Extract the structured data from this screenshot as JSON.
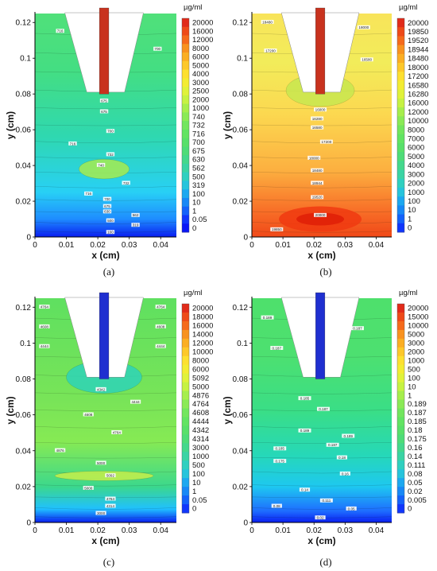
{
  "chart_data": [
    {
      "type": "heatmap",
      "panel_label": "(a)",
      "xlabel": "x (cm)",
      "ylabel": "y (cm)",
      "xlim": [
        0,
        0.045
      ],
      "ylim": [
        0,
        0.125
      ],
      "x_ticks": [
        "0",
        "0.01",
        "0.02",
        "0.03",
        "0.04"
      ],
      "y_ticks": [
        "0",
        "0.02",
        "0.04",
        "0.06",
        "0.08",
        "0.1",
        "0.12"
      ],
      "colorbar_unit": "µg/ml",
      "colorbar_levels": [
        "20000",
        "16000",
        "12000",
        "8000",
        "6000",
        "5000",
        "4000",
        "3000",
        "2500",
        "2000",
        "1000",
        "740",
        "732",
        "716",
        "700",
        "675",
        "630",
        "562",
        "500",
        "319",
        "100",
        "10",
        "1",
        "0.05",
        "0"
      ],
      "needle_color": "#c8321e",
      "contour_labels": [
        {
          "text": "716",
          "x": 0.008,
          "y": 0.115
        },
        {
          "text": "700",
          "x": 0.039,
          "y": 0.105
        },
        {
          "text": "675",
          "x": 0.022,
          "y": 0.076
        },
        {
          "text": "675",
          "x": 0.022,
          "y": 0.07
        },
        {
          "text": "700",
          "x": 0.024,
          "y": 0.059
        },
        {
          "text": "716",
          "x": 0.012,
          "y": 0.052
        },
        {
          "text": "732",
          "x": 0.024,
          "y": 0.046
        },
        {
          "text": "740",
          "x": 0.021,
          "y": 0.04
        },
        {
          "text": "732",
          "x": 0.029,
          "y": 0.03
        },
        {
          "text": "716",
          "x": 0.017,
          "y": 0.024
        },
        {
          "text": "700",
          "x": 0.023,
          "y": 0.021
        },
        {
          "text": "675",
          "x": 0.023,
          "y": 0.017
        },
        {
          "text": "630",
          "x": 0.023,
          "y": 0.014
        },
        {
          "text": "562",
          "x": 0.032,
          "y": 0.012
        },
        {
          "text": "500",
          "x": 0.024,
          "y": 0.009
        },
        {
          "text": "319",
          "x": 0.032,
          "y": 0.0065
        },
        {
          "text": "100",
          "x": 0.024,
          "y": 0.0025
        }
      ]
    },
    {
      "type": "heatmap",
      "panel_label": "(b)",
      "xlabel": "x (cm)",
      "ylabel": "y (cm)",
      "xlim": [
        0,
        0.045
      ],
      "ylim": [
        0,
        0.125
      ],
      "x_ticks": [
        "0",
        "0.01",
        "0.02",
        "0.03",
        "0.04"
      ],
      "y_ticks": [
        "0",
        "0.02",
        "0.04",
        "0.06",
        "0.08",
        "0.1",
        "0.12"
      ],
      "colorbar_unit": "µg/ml",
      "colorbar_levels": [
        "20000",
        "19850",
        "19520",
        "18944",
        "18480",
        "18000",
        "17200",
        "16580",
        "16280",
        "16000",
        "12000",
        "10000",
        "8000",
        "7000",
        "6000",
        "5000",
        "4000",
        "3000",
        "2000",
        "1000",
        "100",
        "10",
        "1",
        "0"
      ],
      "needle_color": "#c8321e",
      "contour_labels": [
        {
          "text": "18480",
          "x": 0.005,
          "y": 0.12
        },
        {
          "text": "18000",
          "x": 0.036,
          "y": 0.117
        },
        {
          "text": "17200",
          "x": 0.006,
          "y": 0.104
        },
        {
          "text": "16580",
          "x": 0.037,
          "y": 0.099
        },
        {
          "text": "16000",
          "x": 0.022,
          "y": 0.071
        },
        {
          "text": "16280",
          "x": 0.021,
          "y": 0.066
        },
        {
          "text": "16580",
          "x": 0.021,
          "y": 0.061
        },
        {
          "text": "17200",
          "x": 0.024,
          "y": 0.053
        },
        {
          "text": "18000",
          "x": 0.02,
          "y": 0.044
        },
        {
          "text": "18480",
          "x": 0.021,
          "y": 0.037
        },
        {
          "text": "18944",
          "x": 0.021,
          "y": 0.03
        },
        {
          "text": "19520",
          "x": 0.021,
          "y": 0.022
        },
        {
          "text": "20000",
          "x": 0.022,
          "y": 0.012
        },
        {
          "text": "19850",
          "x": 0.008,
          "y": 0.004
        }
      ]
    },
    {
      "type": "heatmap",
      "panel_label": "(c)",
      "xlabel": "x (cm)",
      "ylabel": "y (cm)",
      "xlim": [
        0,
        0.045
      ],
      "ylim": [
        0,
        0.125
      ],
      "x_ticks": [
        "0",
        "0.01",
        "0.02",
        "0.03",
        "0.04"
      ],
      "y_ticks": [
        "0",
        "0.02",
        "0.04",
        "0.06",
        "0.08",
        "0.1",
        "0.12"
      ],
      "colorbar_unit": "µg/ml",
      "colorbar_levels": [
        "20000",
        "18000",
        "16000",
        "14000",
        "12000",
        "10000",
        "8000",
        "6000",
        "5092",
        "5000",
        "4876",
        "4764",
        "4608",
        "4444",
        "4342",
        "4314",
        "3000",
        "1000",
        "500",
        "100",
        "10",
        "1",
        "0.05",
        "0"
      ],
      "needle_color": "#1f2fd0",
      "contour_labels": [
        {
          "text": "4764",
          "x": 0.003,
          "y": 0.12
        },
        {
          "text": "4764",
          "x": 0.04,
          "y": 0.12
        },
        {
          "text": "4608",
          "x": 0.003,
          "y": 0.109
        },
        {
          "text": "4608",
          "x": 0.04,
          "y": 0.109
        },
        {
          "text": "4444",
          "x": 0.003,
          "y": 0.098
        },
        {
          "text": "4444",
          "x": 0.04,
          "y": 0.098
        },
        {
          "text": "4342",
          "x": 0.021,
          "y": 0.074
        },
        {
          "text": "4444",
          "x": 0.032,
          "y": 0.067
        },
        {
          "text": "4608",
          "x": 0.017,
          "y": 0.06
        },
        {
          "text": "4764",
          "x": 0.026,
          "y": 0.05
        },
        {
          "text": "4876",
          "x": 0.008,
          "y": 0.04
        },
        {
          "text": "5000",
          "x": 0.021,
          "y": 0.033
        },
        {
          "text": "5092",
          "x": 0.024,
          "y": 0.026
        },
        {
          "text": "5000",
          "x": 0.017,
          "y": 0.019
        },
        {
          "text": "4764",
          "x": 0.024,
          "y": 0.013
        },
        {
          "text": "4314",
          "x": 0.024,
          "y": 0.009
        },
        {
          "text": "3000",
          "x": 0.021,
          "y": 0.005
        }
      ]
    },
    {
      "type": "heatmap",
      "panel_label": "(d)",
      "xlabel": "x (cm)",
      "ylabel": "y (cm)",
      "xlim": [
        0,
        0.045
      ],
      "ylim": [
        0,
        0.125
      ],
      "x_ticks": [
        "0",
        "0.01",
        "0.02",
        "0.03",
        "0.04"
      ],
      "y_ticks": [
        "0",
        "0.02",
        "0.04",
        "0.06",
        "0.08",
        "0.1",
        "0.12"
      ],
      "colorbar_unit": "µg/ml",
      "colorbar_levels": [
        "20000",
        "15000",
        "10000",
        "5000",
        "3000",
        "2000",
        "1000",
        "500",
        "100",
        "10",
        "1",
        "0.189",
        "0.187",
        "0.185",
        "0.18",
        "0.175",
        "0.16",
        "0.14",
        "0.111",
        "0.08",
        "0.05",
        "0.02",
        "0.005",
        "0"
      ],
      "needle_color": "#1f2fd0",
      "contour_labels": [
        {
          "text": "0.189",
          "x": 0.005,
          "y": 0.114
        },
        {
          "text": "0.187",
          "x": 0.034,
          "y": 0.108
        },
        {
          "text": "0.187",
          "x": 0.008,
          "y": 0.097
        },
        {
          "text": "0.185",
          "x": 0.017,
          "y": 0.069
        },
        {
          "text": "0.187",
          "x": 0.023,
          "y": 0.063
        },
        {
          "text": "0.189",
          "x": 0.017,
          "y": 0.051
        },
        {
          "text": "0.189",
          "x": 0.031,
          "y": 0.048
        },
        {
          "text": "0.187",
          "x": 0.026,
          "y": 0.043
        },
        {
          "text": "0.185",
          "x": 0.009,
          "y": 0.041
        },
        {
          "text": "0.18",
          "x": 0.029,
          "y": 0.036
        },
        {
          "text": "0.175",
          "x": 0.009,
          "y": 0.034
        },
        {
          "text": "0.16",
          "x": 0.03,
          "y": 0.027
        },
        {
          "text": "0.14",
          "x": 0.017,
          "y": 0.018
        },
        {
          "text": "0.111",
          "x": 0.024,
          "y": 0.012
        },
        {
          "text": "0.08",
          "x": 0.008,
          "y": 0.009
        },
        {
          "text": "0.05",
          "x": 0.032,
          "y": 0.0075
        },
        {
          "text": "0.02",
          "x": 0.022,
          "y": 0.0025
        }
      ]
    }
  ]
}
